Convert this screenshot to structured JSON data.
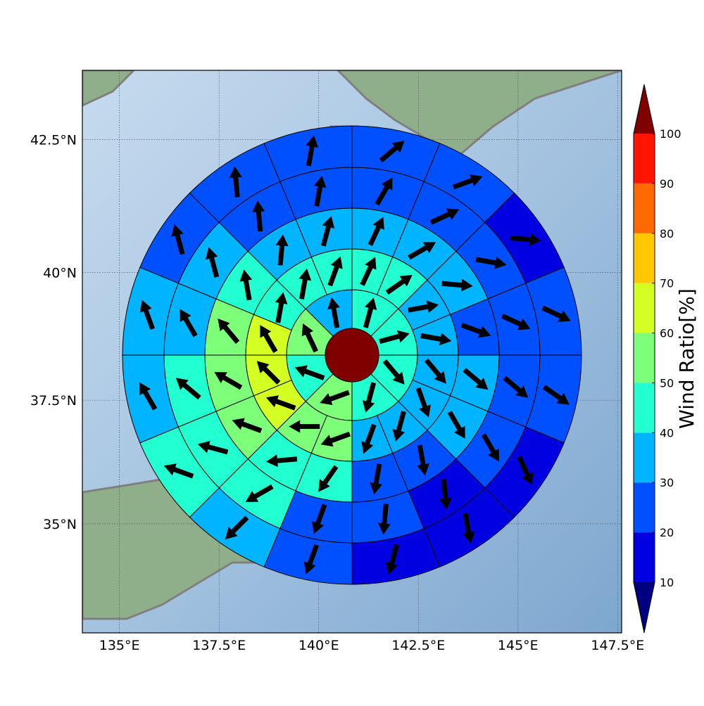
{
  "map": {
    "projection": "mercator",
    "xlim": [
      134.07,
      147.6
    ],
    "ylim": [
      32.73,
      43.77
    ],
    "grid": true,
    "xticks": [
      {
        "value": 135,
        "label": "135°E"
      },
      {
        "value": 137.5,
        "label": "137.5°E"
      },
      {
        "value": 140,
        "label": "140°E"
      },
      {
        "value": 142.5,
        "label": "142.5°E"
      },
      {
        "value": 145,
        "label": "145°E"
      },
      {
        "value": 147.5,
        "label": "147.5°E"
      }
    ],
    "yticks": [
      {
        "value": 35,
        "label": "35°N"
      },
      {
        "value": 37.5,
        "label": "37.5°N"
      },
      {
        "value": 40,
        "label": "40°N"
      },
      {
        "value": 42.5,
        "label": "42.5°N"
      }
    ]
  },
  "wind_ratio": {
    "center": 105,
    "rings": [
      {
        "values": [
          45,
          45,
          45,
          45,
          55,
          45,
          55,
          35
        ],
        "directions": [
          15,
          75,
          140,
          195,
          250,
          290,
          335,
          350
        ]
      },
      {
        "values": [
          45,
          45,
          35,
          35,
          35,
          35,
          35,
          35,
          55,
          55,
          65,
          65,
          65,
          45,
          45,
          45
        ],
        "directions": [
          25,
          55,
          80,
          100,
          140,
          160,
          195,
          200,
          250,
          270,
          290,
          315,
          330,
          10,
          10,
          20
        ]
      },
      {
        "values": [
          35,
          35,
          35,
          25,
          35,
          35,
          25,
          25,
          45,
          45,
          55,
          55,
          55,
          45,
          35,
          35
        ],
        "directions": [
          25,
          60,
          95,
          110,
          130,
          150,
          170,
          190,
          215,
          265,
          290,
          300,
          320,
          350,
          5,
          15
        ]
      },
      {
        "values": [
          25,
          25,
          25,
          25,
          25,
          25,
          15,
          25,
          25,
          45,
          45,
          45,
          35,
          35,
          25,
          25
        ],
        "directions": [
          30,
          65,
          100,
          115,
          130,
          150,
          175,
          185,
          200,
          240,
          285,
          310,
          330,
          345,
          355,
          10
        ]
      },
      {
        "values": [
          25,
          25,
          15,
          25,
          25,
          15,
          15,
          15,
          25,
          35,
          45,
          35,
          35,
          25,
          25,
          25
        ],
        "directions": [
          50,
          70,
          95,
          115,
          125,
          155,
          170,
          195,
          200,
          225,
          290,
          330,
          340,
          345,
          355,
          10
        ]
      }
    ]
  },
  "colorbar": {
    "label": "Wind Ratio[%]",
    "bounds": [
      10,
      20,
      30,
      40,
      50,
      60,
      70,
      80,
      90,
      100
    ],
    "colors": [
      "#0000e0",
      "#0050ff",
      "#00b4ff",
      "#22ffd0",
      "#7dff7a",
      "#d4ff22",
      "#ffc800",
      "#ff6a00",
      "#ff1500"
    ],
    "under": "#000080",
    "over": "#800000",
    "ticks": [
      10,
      20,
      30,
      40,
      50,
      60,
      70,
      80,
      90,
      100
    ]
  }
}
